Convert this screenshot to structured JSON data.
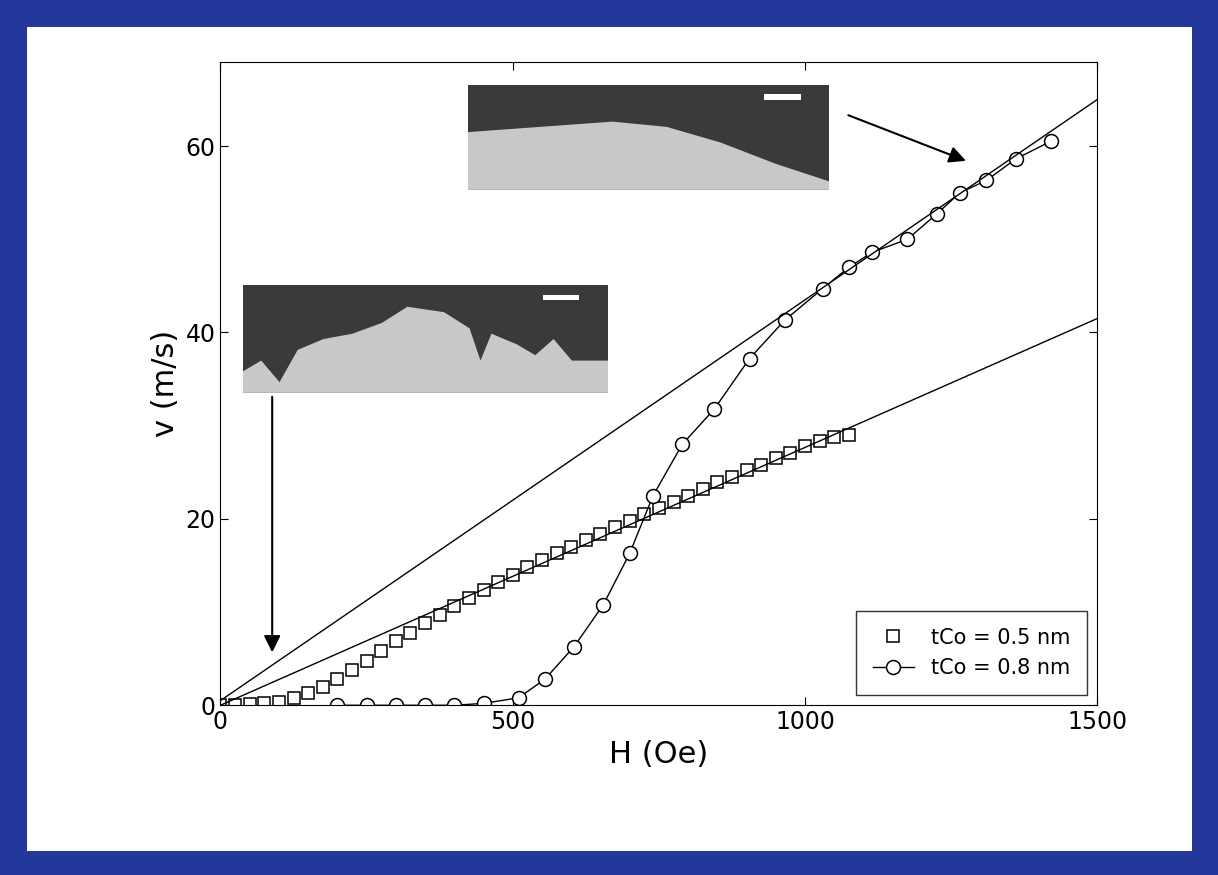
{
  "chart_data": {
    "type": "scatter",
    "x_label": "H (Oe)",
    "y_label": "v (m/s)",
    "xlim": [
      0,
      1500
    ],
    "xticks": [
      0,
      500,
      1000,
      1500
    ],
    "ylim": [
      0,
      69
    ],
    "yticks": [
      0,
      20,
      40,
      60
    ],
    "legend": "lower right",
    "series": [
      {
        "name": "tCo = 0.5 nm",
        "type": "scatter",
        "color": "#000000",
        "marker": "square",
        "line_style": "none",
        "x": [
          0,
          25,
          50,
          75,
          100,
          125,
          150,
          175,
          200,
          225,
          250,
          275,
          300,
          325,
          350,
          375,
          400,
          425,
          450,
          475,
          500,
          525,
          550,
          575,
          600,
          625,
          650,
          675,
          700,
          725,
          750,
          775,
          800,
          825,
          850,
          875,
          900,
          925,
          950,
          975,
          1000,
          1025,
          1050,
          1075
        ],
        "values": [
          0,
          0,
          0.1,
          0.2,
          0.4,
          0.8,
          1.3,
          2.0,
          2.8,
          3.8,
          4.8,
          5.8,
          6.9,
          7.8,
          8.8,
          9.7,
          10.6,
          11.5,
          12.4,
          13.2,
          14.0,
          14.8,
          15.6,
          16.3,
          17.0,
          17.7,
          18.4,
          19.1,
          19.8,
          20.5,
          21.2,
          21.8,
          22.5,
          23.2,
          23.9,
          24.5,
          25.2,
          25.8,
          26.5,
          27.1,
          27.8,
          28.3,
          28.8,
          29.0
        ]
      },
      {
        "name": "tCo = 0.8 nm",
        "type": "line",
        "color": "#000000",
        "marker": "circle",
        "line_style": "solid",
        "x": [
          200,
          250,
          300,
          350,
          400,
          450,
          510,
          555,
          605,
          655,
          700,
          740,
          790,
          845,
          905,
          965,
          1030,
          1075,
          1115,
          1175,
          1225,
          1265,
          1310,
          1360,
          1420
        ],
        "values": [
          0,
          0,
          0,
          0,
          0,
          0.2,
          0.8,
          2.8,
          6.3,
          10.8,
          16.3,
          22.5,
          28,
          31.8,
          37.2,
          41.3,
          44.7,
          47,
          48.6,
          50,
          52.7,
          55,
          56.3,
          58.6,
          60.5
        ]
      },
      {
        "type": "line",
        "color": "#000000",
        "marker": "none",
        "line_style": "solid",
        "x": [
          0,
          1500
        ],
        "values": [
          0.5,
          65
        ]
      },
      {
        "type": "line",
        "color": "#000000",
        "marker": "none",
        "line_style": "solid",
        "x": [
          0,
          1500
        ],
        "values": [
          0,
          41.5
        ]
      }
    ]
  }
}
